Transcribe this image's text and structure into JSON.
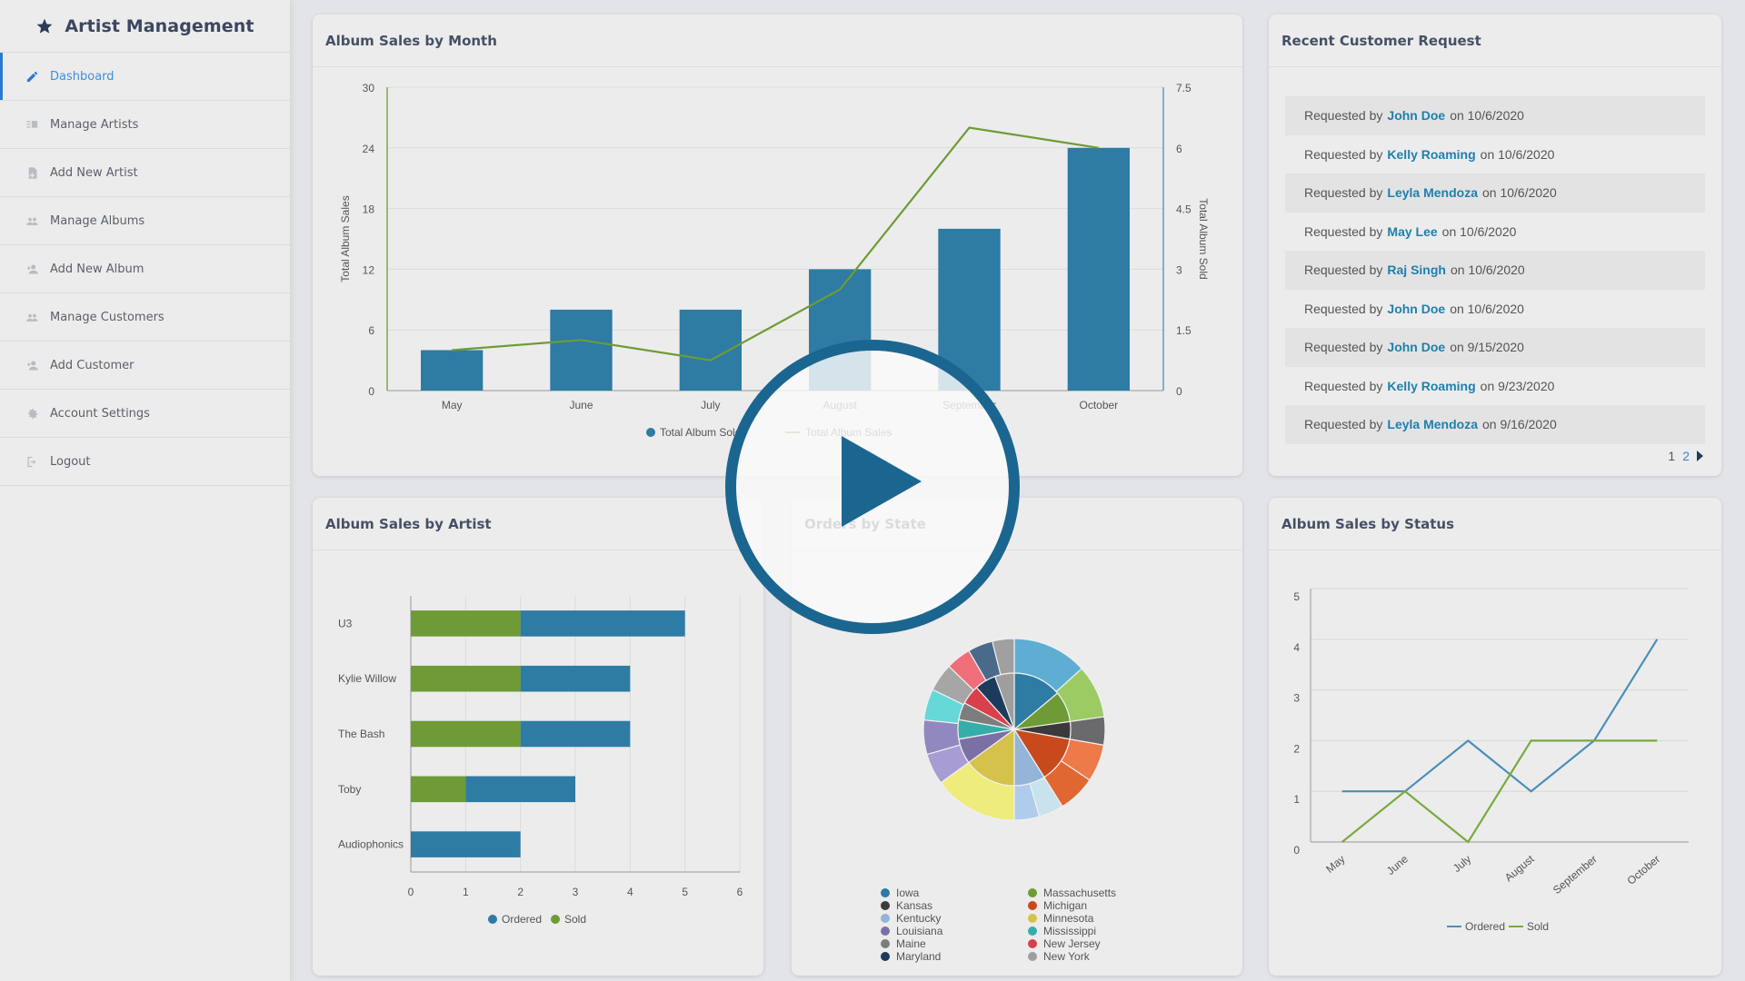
{
  "app": {
    "title": "Artist Management",
    "logo_icon": "star-icon"
  },
  "sidebar": {
    "items": [
      {
        "label": "Dashboard",
        "icon": "pencil-icon",
        "active": true
      },
      {
        "label": "Manage Artists",
        "icon": "list-icon",
        "active": false
      },
      {
        "label": "Add New Artist",
        "icon": "file-add-icon",
        "active": false
      },
      {
        "label": "Manage Albums",
        "icon": "users-icon",
        "active": false
      },
      {
        "label": "Add New Album",
        "icon": "user-add-icon",
        "active": false
      },
      {
        "label": "Manage Customers",
        "icon": "users-icon",
        "active": false
      },
      {
        "label": "Add Customer",
        "icon": "user-add-icon",
        "active": false
      },
      {
        "label": "Account Settings",
        "icon": "gear-icon",
        "active": false
      },
      {
        "label": "Logout",
        "icon": "logout-icon",
        "active": false
      }
    ]
  },
  "cards": {
    "month": {
      "title": "Album Sales by Month"
    },
    "requests": {
      "title": "Recent Customer Request"
    },
    "artist": {
      "title": "Album Sales by Artist"
    },
    "state": {
      "title": "Orders by State"
    },
    "status": {
      "title": "Album Sales by Status"
    }
  },
  "requests": {
    "prefix": "Requested by",
    "mid": "on",
    "rows": [
      {
        "name": "John Doe",
        "date": "10/6/2020"
      },
      {
        "name": "Kelly Roaming",
        "date": "10/6/2020"
      },
      {
        "name": "Leyla Mendoza",
        "date": "10/6/2020"
      },
      {
        "name": "May Lee",
        "date": "10/6/2020"
      },
      {
        "name": "Raj Singh",
        "date": "10/6/2020"
      },
      {
        "name": "John Doe",
        "date": "10/6/2020"
      },
      {
        "name": "John Doe",
        "date": "9/15/2020"
      },
      {
        "name": "Kelly Roaming",
        "date": "9/23/2020"
      },
      {
        "name": "Leyla Mendoza",
        "date": "9/16/2020"
      }
    ],
    "pagination": {
      "pages": [
        "1",
        "2"
      ],
      "current": "2",
      "next_icon": "caret-right-icon"
    }
  },
  "overlay": {
    "icon": "play-icon"
  },
  "colors": {
    "blue": "#2e7ba4",
    "green": "#6e9b35",
    "sidebar_active": "#2a7ad0",
    "link": "#1f7fae",
    "play": "#1b6690"
  },
  "chart_data": [
    {
      "id": "month",
      "type": "bar+line",
      "title": "Album Sales by Month",
      "categories": [
        "May",
        "June",
        "July",
        "August",
        "September",
        "October"
      ],
      "series": [
        {
          "name": "Total Album Sold",
          "type": "bar",
          "axis": "right",
          "color": "#2e7ba4",
          "values": [
            1,
            2,
            2,
            3,
            4,
            6
          ]
        },
        {
          "name": "Total Album Sales",
          "type": "line",
          "axis": "left",
          "color": "#6e9b35",
          "values": [
            4,
            5,
            3,
            10,
            26,
            24
          ]
        }
      ],
      "ylabel_left": "Total Album Sales",
      "ylabel_right": "Total Album Sold",
      "yticks_left": [
        "0",
        "6",
        "12",
        "18",
        "24",
        "30"
      ],
      "yticks_right": [
        "0",
        "1.5",
        "3",
        "4.5",
        "6",
        "7.5"
      ],
      "ylim_left": [
        0,
        30
      ],
      "ylim_right": [
        0,
        7.5
      ],
      "grid": true,
      "legend_position": "bottom"
    },
    {
      "id": "artist",
      "type": "bar",
      "orientation": "horizontal",
      "stacked": true,
      "title": "Album Sales by Artist",
      "categories": [
        "U3",
        "Kylie Willow",
        "The Bash",
        "Toby",
        "Audiophonics"
      ],
      "series": [
        {
          "name": "Sold",
          "color": "#6e9b35",
          "values": [
            2,
            2,
            2,
            1,
            0
          ]
        },
        {
          "name": "Ordered",
          "color": "#2e7ba4",
          "values": [
            3,
            2,
            2,
            2,
            2
          ]
        }
      ],
      "xticks": [
        "0",
        "1",
        "2",
        "3",
        "4",
        "5",
        "6"
      ],
      "xlim": [
        0,
        6
      ],
      "legend": [
        "Ordered",
        "Sold"
      ],
      "legend_position": "bottom"
    },
    {
      "id": "state",
      "type": "pie",
      "variant": "sunburst",
      "title": "Orders by State",
      "slices": [
        {
          "label": "Iowa",
          "color": "#2e7ba4",
          "start": 0,
          "end": 50
        },
        {
          "label": "Massachusetts",
          "color": "#6e9b35",
          "start": 50,
          "end": 82
        },
        {
          "label": "Kansas",
          "color": "#3a3a3c",
          "start": 82,
          "end": 100
        },
        {
          "label": "Michigan",
          "color": "#c84a1c",
          "start": 100,
          "end": 148
        },
        {
          "label": "Kentucky",
          "color": "#94b4d8",
          "start": 148,
          "end": 180
        },
        {
          "label": "Minnesota",
          "color": "#d4c24a",
          "start": 180,
          "end": 234
        },
        {
          "label": "Louisiana",
          "color": "#7b70a6",
          "start": 234,
          "end": 260
        },
        {
          "label": "Mississippi",
          "color": "#35aeaa",
          "start": 260,
          "end": 280
        },
        {
          "label": "Maine",
          "color": "#7d7d7d",
          "start": 280,
          "end": 298
        },
        {
          "label": "New Jersey",
          "color": "#d8404c",
          "start": 298,
          "end": 318
        },
        {
          "label": "Maryland",
          "color": "#1c3a5c",
          "start": 318,
          "end": 340
        },
        {
          "label": "New York",
          "color": "#9e9e9e",
          "start": 340,
          "end": 360
        }
      ],
      "outer_ring": [
        {
          "color": "#5eaed4",
          "start": 0,
          "end": 48
        },
        {
          "color": "#9ccb64",
          "start": 48,
          "end": 82
        },
        {
          "color": "#6a6a6c",
          "start": 82,
          "end": 100
        },
        {
          "color": "#ee7a4a",
          "start": 100,
          "end": 124
        },
        {
          "color": "#e06632",
          "start": 124,
          "end": 148
        },
        {
          "color": "#c8e2ee",
          "start": 148,
          "end": 164
        },
        {
          "color": "#b0ccec",
          "start": 164,
          "end": 180
        },
        {
          "color": "#eeec7c",
          "start": 180,
          "end": 234
        },
        {
          "color": "#a89cd4",
          "start": 234,
          "end": 254
        },
        {
          "color": "#9288c0",
          "start": 254,
          "end": 276
        },
        {
          "color": "#66d8d8",
          "start": 276,
          "end": 296
        },
        {
          "color": "#a6a6a6",
          "start": 296,
          "end": 314
        },
        {
          "color": "#ee6e7a",
          "start": 314,
          "end": 330
        },
        {
          "color": "#4a6a8c",
          "start": 330,
          "end": 346
        },
        {
          "color": "#a0a0a0",
          "start": 346,
          "end": 360
        }
      ],
      "legend": [
        {
          "label": "Iowa",
          "color": "#2e7ba4"
        },
        {
          "label": "Kansas",
          "color": "#3a3a3c"
        },
        {
          "label": "Kentucky",
          "color": "#94b4d8"
        },
        {
          "label": "Louisiana",
          "color": "#7b70a6"
        },
        {
          "label": "Maine",
          "color": "#7d7d7d"
        },
        {
          "label": "Maryland",
          "color": "#1c3a5c"
        },
        {
          "label": "Massachusetts",
          "color": "#6e9b35"
        },
        {
          "label": "Michigan",
          "color": "#c84a1c"
        },
        {
          "label": "Minnesota",
          "color": "#d4c24a"
        },
        {
          "label": "Mississippi",
          "color": "#35aeaa"
        },
        {
          "label": "New Jersey",
          "color": "#d8404c"
        },
        {
          "label": "New York",
          "color": "#9e9e9e"
        }
      ],
      "legend_position": "bottom"
    },
    {
      "id": "status",
      "type": "line",
      "title": "Album Sales by Status",
      "categories": [
        "May",
        "June",
        "July",
        "August",
        "September",
        "October"
      ],
      "series": [
        {
          "name": "Ordered",
          "color": "#4a8fb8",
          "values": [
            1,
            1,
            2,
            1,
            2,
            4
          ]
        },
        {
          "name": "Sold",
          "color": "#7aaa3e",
          "values": [
            0,
            1,
            0,
            2,
            2,
            2
          ]
        }
      ],
      "yticks": [
        "0",
        "1",
        "2",
        "3",
        "4",
        "5"
      ],
      "ylim": [
        0,
        5
      ],
      "grid": true,
      "legend_position": "bottom"
    }
  ]
}
